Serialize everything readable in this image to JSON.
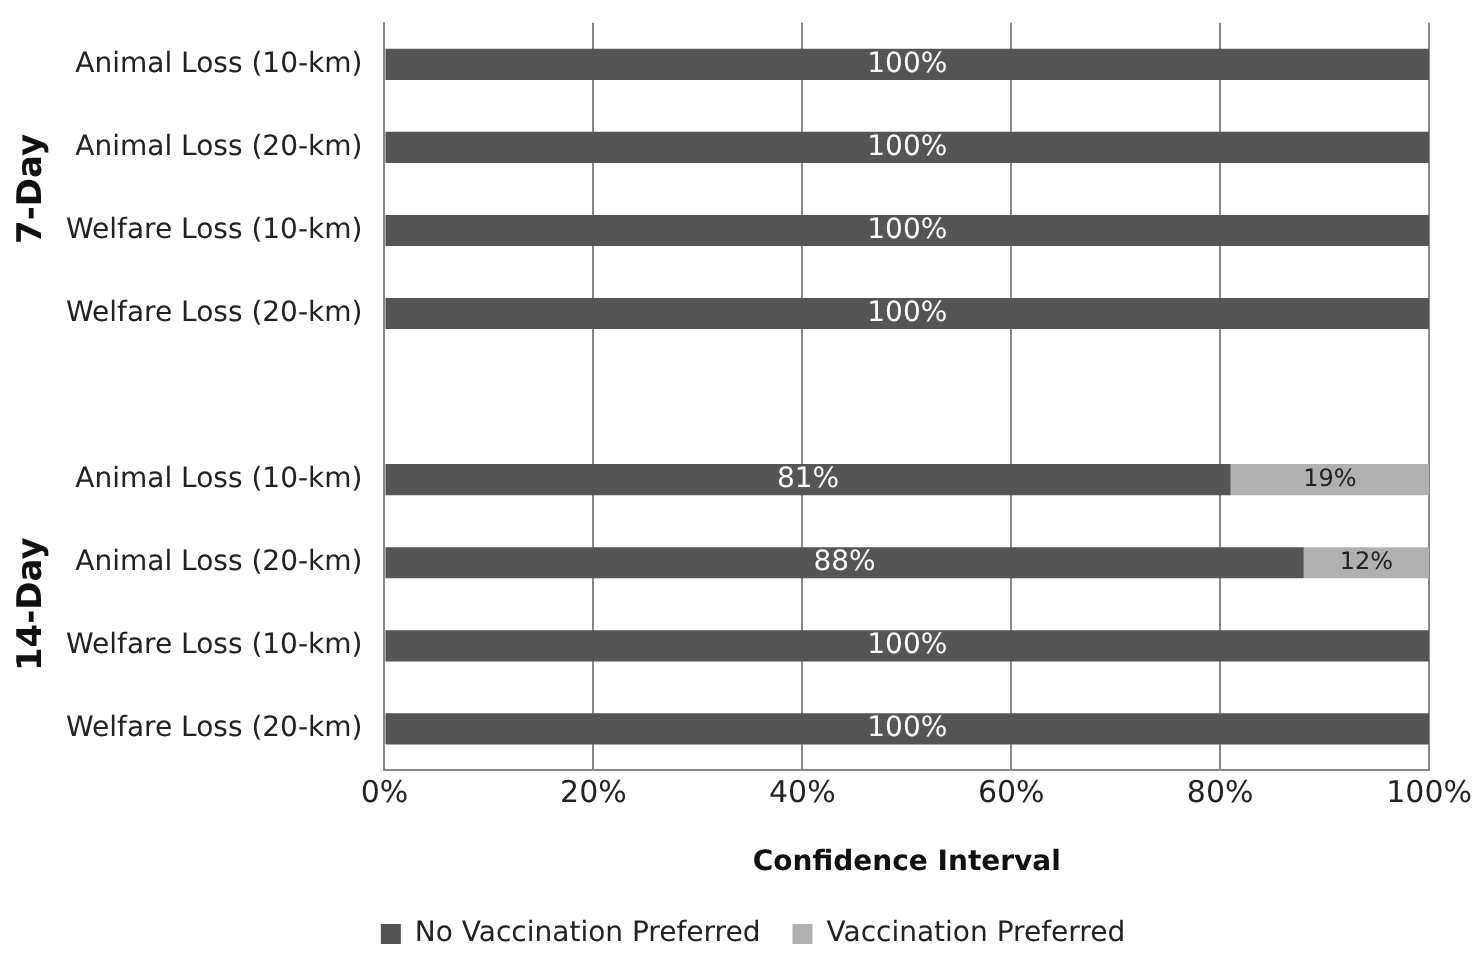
{
  "chart_data": {
    "type": "bar",
    "orientation": "horizontal",
    "stacked": true,
    "categories": [
      "Animal Loss (10-km)",
      "Animal Loss (20-km)",
      "Welfare Loss (10-km)",
      "Welfare Loss (20-km)",
      null,
      "Animal Loss (10-km)",
      "Animal Loss (20-km)",
      "Welfare Loss (10-km)",
      "Welfare Loss (20-km)"
    ],
    "series": [
      {
        "name": "No Vaccination Preferred",
        "color": "#555555",
        "values": [
          100,
          100,
          100,
          100,
          null,
          81,
          88,
          100,
          100
        ],
        "value_labels": [
          "100%",
          "100%",
          "100%",
          "100%",
          null,
          "81%",
          "88%",
          "100%",
          "100%"
        ]
      },
      {
        "name": "Vaccination Preferred",
        "color": "#b0b0b0",
        "values": [
          0,
          0,
          0,
          0,
          null,
          19,
          12,
          0,
          0
        ],
        "value_labels": [
          null,
          null,
          null,
          null,
          null,
          "19%",
          "12%",
          null,
          null
        ]
      }
    ],
    "xlim": [
      0,
      100
    ],
    "xticks": [
      {
        "value": 0,
        "label": "0%"
      },
      {
        "value": 20,
        "label": "20%"
      },
      {
        "value": 40,
        "label": "40%"
      },
      {
        "value": 60,
        "label": "60%"
      },
      {
        "value": 80,
        "label": "80%"
      },
      {
        "value": 100,
        "label": "100%"
      }
    ],
    "xlabel": "Confidence Interval",
    "annotations": [
      "7-Day",
      "14-Day"
    ],
    "grid": "x",
    "legend": "bottom"
  }
}
